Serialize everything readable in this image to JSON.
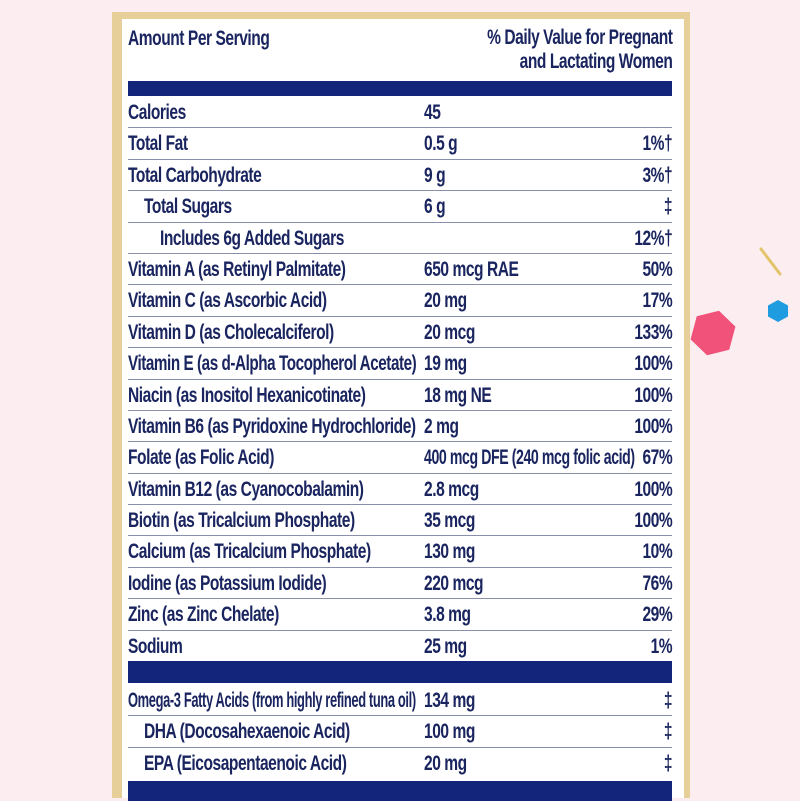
{
  "header": {
    "left": "Amount Per Serving",
    "right_line1": "% Daily Value for Pregnant",
    "right_line2": "and Lactating Women"
  },
  "rows": [
    {
      "name": "Calories",
      "amount": "45",
      "dv": ""
    },
    {
      "name": "Total Fat",
      "amount": "0.5 g",
      "dv": "1%†"
    },
    {
      "name": "Total Carbohydrate",
      "amount": "9 g",
      "dv": "3%†"
    },
    {
      "name": "Total Sugars",
      "amount": "6 g",
      "dv": "‡"
    },
    {
      "name": "Includes 6g Added Sugars",
      "amount": "",
      "dv": "12%†"
    },
    {
      "name": "Vitamin A (as Retinyl Palmitate)",
      "amount": "650 mcg RAE",
      "dv": "50%"
    },
    {
      "name": "Vitamin C (as Ascorbic Acid)",
      "amount": "20 mg",
      "dv": "17%"
    },
    {
      "name": "Vitamin D (as Cholecalciferol)",
      "amount": "20 mcg",
      "dv": "133%"
    },
    {
      "name": "Vitamin E (as d-Alpha Tocopherol Acetate)",
      "amount": "19 mg",
      "dv": "100%"
    },
    {
      "name": "Niacin (as Inositol Hexanicotinate)",
      "amount": "18 mg NE",
      "dv": "100%"
    },
    {
      "name": "Vitamin B6 (as Pyridoxine Hydrochloride)",
      "amount": "2 mg",
      "dv": "100%"
    },
    {
      "name": "Folate (as Folic Acid)",
      "amount": "400 mcg DFE (240 mcg folic acid)",
      "dv": "67%"
    },
    {
      "name": "Vitamin B12 (as Cyanocobalamin)",
      "amount": "2.8 mcg",
      "dv": "100%"
    },
    {
      "name": "Biotin (as Tricalcium Phosphate)",
      "amount": "35 mcg",
      "dv": "100%"
    },
    {
      "name": "Calcium (as Tricalcium Phosphate)",
      "amount": "130 mg",
      "dv": "10%"
    },
    {
      "name": "Iodine (as Potassium Iodide)",
      "amount": "220 mcg",
      "dv": "76%"
    },
    {
      "name": "Zinc (as Zinc Chelate)",
      "amount": "3.8 mg",
      "dv": "29%"
    },
    {
      "name": "Sodium",
      "amount": "25 mg",
      "dv": "1%"
    }
  ],
  "omega_rows": [
    {
      "name": "Omega-3 Fatty Acids (from highly refined tuna oil)",
      "amount": "134 mg",
      "dv": "‡"
    },
    {
      "name": "DHA (Docosahexaenoic Acid)",
      "amount": "100 mg",
      "dv": "‡"
    },
    {
      "name": "EPA (Eicosapentaenoic Acid)",
      "amount": "20 mg",
      "dv": "‡"
    }
  ],
  "colors": {
    "navy": "#13257a",
    "gold": "#e6cf98",
    "background": "#fbedf0",
    "hexagon_pink": "#f0527a",
    "hexagon_blue": "#1f9be0"
  }
}
